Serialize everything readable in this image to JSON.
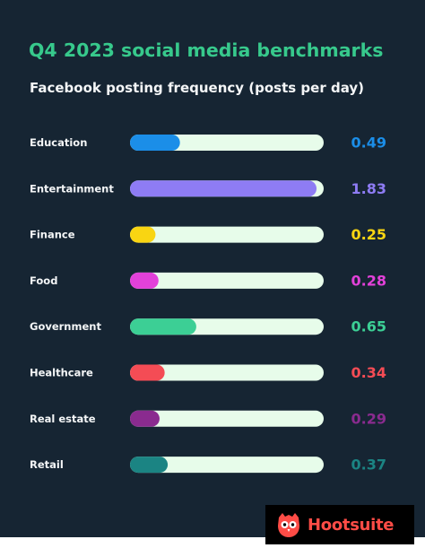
{
  "header": {
    "title": "Q4 2023 social media benchmarks",
    "subtitle": "Facebook posting frequency (posts per day)"
  },
  "brand": {
    "name": "Hootsuite",
    "logo_icon": "owl-icon",
    "color": "#ff4c46"
  },
  "colors": {
    "background": "#162533",
    "title": "#37c98c",
    "track": "#e7fcea"
  },
  "chart_data": {
    "type": "bar",
    "orientation": "horizontal",
    "title": "Q4 2023 social media benchmarks",
    "subtitle": "Facebook posting frequency (posts per day)",
    "xlabel": "",
    "ylabel": "",
    "xlim": [
      0,
      1.9
    ],
    "grid": false,
    "categories": [
      "Education",
      "Entertainment",
      "Finance",
      "Food",
      "Government",
      "Healthcare",
      "Real estate",
      "Retail"
    ],
    "values": [
      0.49,
      1.83,
      0.25,
      0.28,
      0.65,
      0.34,
      0.29,
      0.37
    ],
    "value_labels": [
      "0.49",
      "1.83",
      "0.25",
      "0.28",
      "0.65",
      "0.34",
      "0.29",
      "0.37"
    ],
    "colors": [
      "#1b8ee8",
      "#8e7cf4",
      "#f9d512",
      "#e241d9",
      "#3ccf95",
      "#f44c55",
      "#8a2b8f",
      "#1b8483"
    ]
  }
}
